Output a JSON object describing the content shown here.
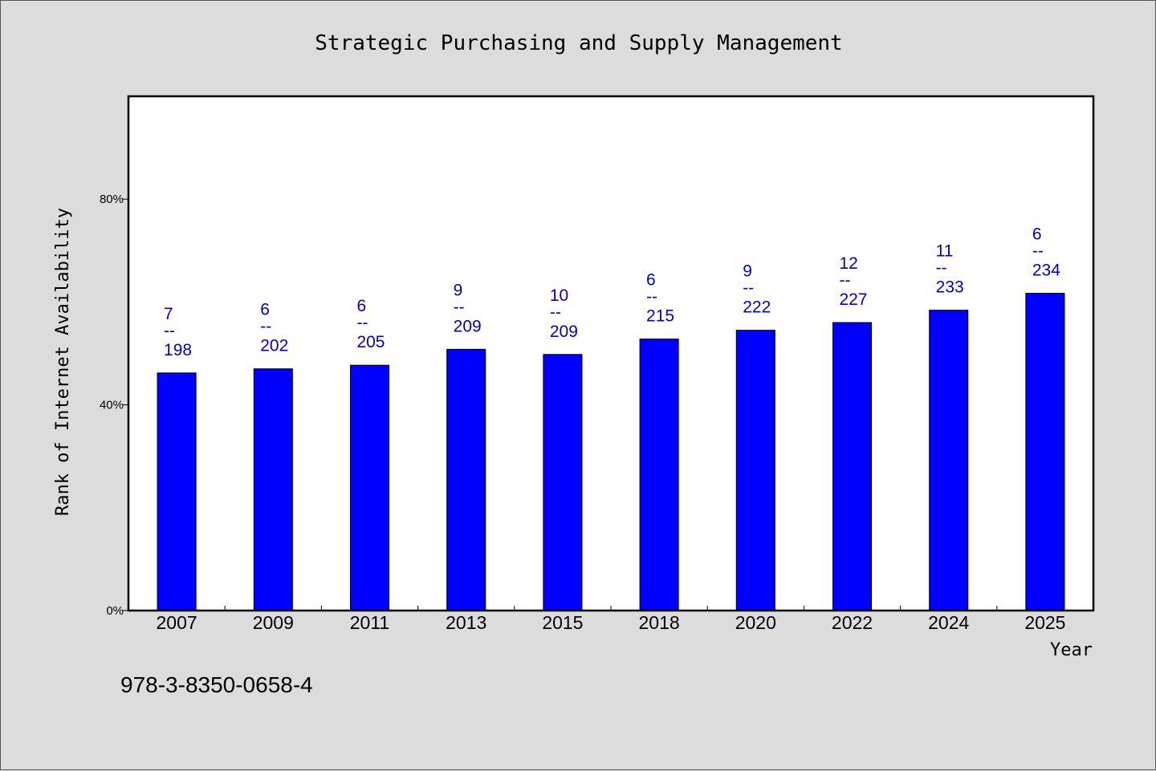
{
  "chart_data": {
    "type": "bar",
    "title": "Strategic Purchasing and Supply Management",
    "xlabel": "Year",
    "ylabel": "Rank of Internet Availability",
    "categories": [
      "2007",
      "2009",
      "2011",
      "2013",
      "2015",
      "2018",
      "2020",
      "2022",
      "2024",
      "2025"
    ],
    "values": [
      46.2,
      47.0,
      47.7,
      50.8,
      49.8,
      52.8,
      54.5,
      56.0,
      58.4,
      61.7
    ],
    "rank_labels": [
      {
        "rank": "7",
        "separator": "--",
        "total": "198"
      },
      {
        "rank": "6",
        "separator": "--",
        "total": "202"
      },
      {
        "rank": "6",
        "separator": "--",
        "total": "205"
      },
      {
        "rank": "9",
        "separator": "--",
        "total": "209"
      },
      {
        "rank": "10",
        "separator": "--",
        "total": "209"
      },
      {
        "rank": "6",
        "separator": "--",
        "total": "215"
      },
      {
        "rank": "9",
        "separator": "--",
        "total": "222"
      },
      {
        "rank": "12",
        "separator": "--",
        "total": "227"
      },
      {
        "rank": "11",
        "separator": "--",
        "total": "233"
      },
      {
        "rank": "6",
        "separator": "--",
        "total": "234"
      }
    ],
    "yticks": [
      0,
      40,
      80
    ],
    "ytick_labels": [
      "0%",
      "40%",
      "80%"
    ],
    "ylim": [
      0,
      100
    ],
    "grid": false,
    "bar_color": "#0000ff",
    "label_color": "#0000cc"
  },
  "footer": {
    "isbn": "978-3-8350-0658-4"
  }
}
